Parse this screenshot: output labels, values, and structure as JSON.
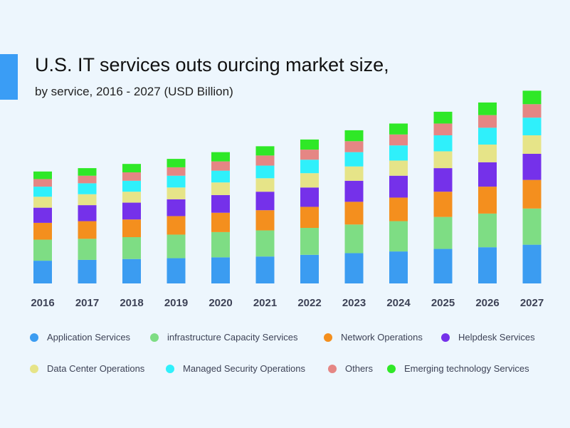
{
  "header": {
    "title": "U.S. IT services outs ourcing market size,",
    "subtitle": "by service, 2016 - 2027 (USD Billion)"
  },
  "colors": {
    "background": "#edf6fd",
    "accent": "#3a9df5"
  },
  "chart_data": {
    "type": "bar",
    "stacked": true,
    "title": "U.S. IT services outs ourcing market size,",
    "subtitle": "by service, 2016 - 2027 (USD Billion)",
    "xlabel": "",
    "ylabel": "",
    "y_axis_visible": false,
    "grid": false,
    "legend_position": "bottom",
    "categories": [
      "2016",
      "2017",
      "2018",
      "2019",
      "2020",
      "2021",
      "2022",
      "2023",
      "2024",
      "2025",
      "2026",
      "2027"
    ],
    "series": [
      {
        "name": "Application Services",
        "color": "#3b9cf1",
        "values": [
          27,
          28,
          29,
          30,
          31,
          32,
          34,
          36,
          38,
          41,
          43,
          46
        ]
      },
      {
        "name": "infrastructure Capacity Services",
        "color": "#7edd84",
        "values": [
          25,
          25,
          26,
          28,
          30,
          31,
          32,
          34,
          36,
          38,
          40,
          43
        ]
      },
      {
        "name": "Network Operations",
        "color": "#f48f1e",
        "values": [
          20,
          21,
          21,
          22,
          23,
          24,
          25,
          27,
          28,
          30,
          32,
          34
        ]
      },
      {
        "name": "Helpdesk Services",
        "color": "#7531ea",
        "values": [
          18,
          19,
          20,
          20,
          21,
          22,
          23,
          25,
          26,
          28,
          29,
          31
        ]
      },
      {
        "name": "Data Center Operations",
        "color": "#e6e488",
        "values": [
          13,
          13,
          13,
          14,
          15,
          16,
          17,
          17,
          18,
          20,
          21,
          22
        ]
      },
      {
        "name": "Managed Security Operations",
        "color": "#2ff0fb",
        "values": [
          12,
          13,
          13,
          14,
          14,
          15,
          16,
          17,
          18,
          19,
          20,
          21
        ]
      },
      {
        "name": "Others",
        "color": "#e58684",
        "values": [
          9,
          9,
          10,
          10,
          11,
          12,
          12,
          13,
          13,
          14,
          15,
          16
        ]
      },
      {
        "name": "Emerging technology Services",
        "color": "#2fe827",
        "values": [
          9,
          9,
          10,
          10,
          11,
          11,
          12,
          13,
          13,
          14,
          15,
          16
        ]
      }
    ]
  }
}
